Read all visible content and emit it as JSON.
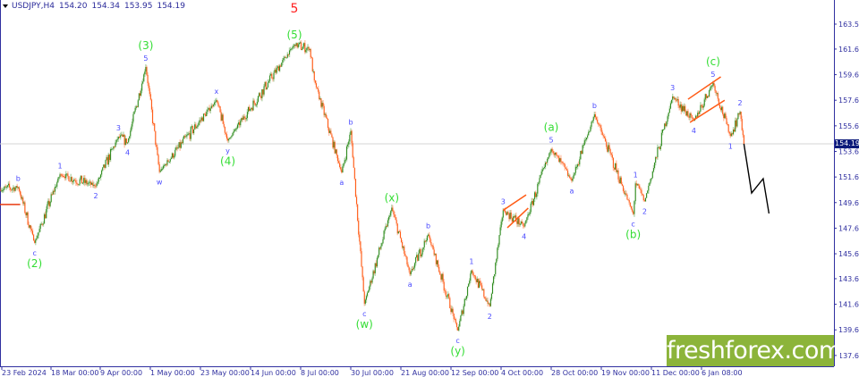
{
  "header": {
    "symbol": "USDJPY,H4",
    "open": "154.20",
    "high": "154.34",
    "low": "153.95",
    "close": "154.19"
  },
  "logo": {
    "text": "freshforex.com",
    "color": "#8cb43a"
  },
  "current_price_label": "154.19",
  "colors": {
    "up": "#2e8b1e",
    "down": "#ff5a14",
    "wave_minor": "#4a4aff",
    "wave_major": "#33dd33",
    "wave_top": "#ff2020",
    "axis": "#3030a0",
    "projection": "#000000",
    "channel": "#ff5a14"
  },
  "chart_data": {
    "type": "candlestick",
    "title": "",
    "ylim": [
      137.0,
      164.5
    ],
    "y_ticks": [
      "163.55",
      "161.60",
      "159.60",
      "157.60",
      "155.60",
      "153.60",
      "151.60",
      "149.60",
      "147.60",
      "145.60",
      "143.65",
      "141.65",
      "139.65",
      "137.65"
    ],
    "x_ticks": [
      {
        "label": "23 Feb 2024",
        "date": "2024-02-23"
      },
      {
        "label": "18 Mar 00:00",
        "date": "2024-03-18"
      },
      {
        "label": "9 Apr 00:00",
        "date": "2024-04-09"
      },
      {
        "label": "1 May 00:00",
        "date": "2024-05-01"
      },
      {
        "label": "23 May 00:00",
        "date": "2024-05-23"
      },
      {
        "label": "14 Jun 00:00",
        "date": "2024-06-14"
      },
      {
        "label": "8 Jul 00:00",
        "date": "2024-07-08"
      },
      {
        "label": "30 Jul 00:00",
        "date": "2024-07-30"
      },
      {
        "label": "21 Aug 00:00",
        "date": "2024-08-21"
      },
      {
        "label": "12 Sep 00:00",
        "date": "2024-09-12"
      },
      {
        "label": "4 Oct 00:00",
        "date": "2024-10-04"
      },
      {
        "label": "28 Oct 00:00",
        "date": "2024-10-28"
      },
      {
        "label": "19 Nov 00:00",
        "date": "2024-11-19"
      },
      {
        "label": "11 Dec 00:00",
        "date": "2024-12-11"
      },
      {
        "label": "6 Jan 08:00",
        "date": "2025-01-06"
      }
    ],
    "price_path": [
      [
        "2024-02-22",
        150.6
      ],
      [
        "2024-03-02",
        150.8
      ],
      [
        "2024-03-10",
        146.45
      ],
      [
        "2024-03-22",
        151.8
      ],
      [
        "2024-04-07",
        150.9
      ],
      [
        "2024-04-17",
        154.75
      ],
      [
        "2024-04-21",
        154.3
      ],
      [
        "2024-04-29",
        160.2
      ],
      [
        "2024-05-05",
        152.0
      ],
      [
        "2024-05-30",
        157.6
      ],
      [
        "2024-06-04",
        154.45
      ],
      [
        "2024-07-05",
        161.95
      ],
      [
        "2024-07-12",
        161.6
      ],
      [
        "2024-07-14",
        159.15
      ],
      [
        "2024-07-26",
        151.95
      ],
      [
        "2024-07-30",
        155.2
      ],
      [
        "2024-08-05",
        141.7
      ],
      [
        "2024-08-17",
        149.2
      ],
      [
        "2024-08-25",
        143.99
      ],
      [
        "2024-09-02",
        147.1
      ],
      [
        "2024-09-15",
        139.6
      ],
      [
        "2024-09-21",
        144.3
      ],
      [
        "2024-09-29",
        141.5
      ],
      [
        "2024-10-05",
        149.0
      ],
      [
        "2024-10-15",
        147.75
      ],
      [
        "2024-10-28",
        153.8
      ],
      [
        "2024-11-06",
        151.3
      ],
      [
        "2024-11-16",
        156.5
      ],
      [
        "2024-12-03",
        148.7
      ],
      [
        "2024-12-04",
        151.1
      ],
      [
        "2024-12-08",
        149.7
      ],
      [
        "2024-12-22",
        157.9
      ],
      [
        "2025-01-02",
        156.0
      ],
      [
        "2025-01-12",
        158.95
      ],
      [
        "2025-01-21",
        154.8
      ],
      [
        "2025-01-26",
        156.7
      ],
      [
        "2025-01-28",
        154.19
      ]
    ],
    "current_price": 154.19,
    "reference_line": {
      "date_from": "2024-02-22",
      "date_to": "2024-03-03",
      "price": 149.45
    },
    "projection": [
      [
        "2025-01-28",
        154.19
      ],
      [
        "2025-02-01",
        150.35
      ],
      [
        "2025-02-07",
        151.47
      ],
      [
        "2025-02-10",
        148.75
      ]
    ],
    "channels": [
      [
        [
          "2024-10-05",
          149.0
        ],
        [
          "2024-10-16",
          150.2
        ]
      ],
      [
        [
          "2024-10-07",
          147.63
        ],
        [
          "2024-10-17",
          149.17
        ]
      ],
      [
        [
          "2024-12-30",
          157.68
        ],
        [
          "2025-01-16",
          159.43
        ]
      ],
      [
        [
          "2024-12-31",
          155.87
        ],
        [
          "2025-01-18",
          157.6
        ]
      ]
    ],
    "wave_labels": [
      {
        "text": "b",
        "date": "2024-03-02",
        "price": 150.8,
        "pos": "above",
        "level": 1,
        "kind": "minor"
      },
      {
        "text": "c",
        "date": "2024-03-10",
        "price": 146.45,
        "pos": "below",
        "level": 1,
        "kind": "minor"
      },
      {
        "text": "(2)",
        "date": "2024-03-10",
        "price": 146.45,
        "pos": "below",
        "level": 2,
        "kind": "major"
      },
      {
        "text": "1",
        "date": "2024-03-22",
        "price": 151.8,
        "pos": "above",
        "level": 1,
        "kind": "minor"
      },
      {
        "text": "2",
        "date": "2024-04-07",
        "price": 150.9,
        "pos": "below",
        "level": 1,
        "kind": "minor"
      },
      {
        "text": "3",
        "date": "2024-04-17",
        "price": 154.75,
        "pos": "above",
        "level": 1,
        "kind": "minor"
      },
      {
        "text": "4",
        "date": "2024-04-21",
        "price": 154.3,
        "pos": "below",
        "level": 1,
        "kind": "minor"
      },
      {
        "text": "5",
        "date": "2024-04-29",
        "price": 160.2,
        "pos": "above",
        "level": 1,
        "kind": "minor"
      },
      {
        "text": "(3)",
        "date": "2024-04-29",
        "price": 160.2,
        "pos": "above",
        "level": 2,
        "kind": "major"
      },
      {
        "text": "w",
        "date": "2024-05-05",
        "price": 152.0,
        "pos": "below",
        "level": 1,
        "kind": "minor"
      },
      {
        "text": "x",
        "date": "2024-05-30",
        "price": 157.6,
        "pos": "above",
        "level": 1,
        "kind": "minor"
      },
      {
        "text": "y",
        "date": "2024-06-04",
        "price": 154.45,
        "pos": "below",
        "level": 1,
        "kind": "minor"
      },
      {
        "text": "(4)",
        "date": "2024-06-04",
        "price": 154.45,
        "pos": "below",
        "level": 2,
        "kind": "major"
      },
      {
        "text": "(5)",
        "date": "2024-07-05",
        "price": 161.95,
        "pos": "above",
        "level": 1,
        "kind": "major"
      },
      {
        "text": "5",
        "date": "2024-07-05",
        "price": 161.95,
        "pos": "above",
        "level": 3,
        "kind": "top"
      },
      {
        "text": "a",
        "date": "2024-07-26",
        "price": 151.95,
        "pos": "below",
        "level": 1,
        "kind": "minor"
      },
      {
        "text": "b",
        "date": "2024-07-30",
        "price": 155.2,
        "pos": "above",
        "level": 1,
        "kind": "minor"
      },
      {
        "text": "c",
        "date": "2024-08-05",
        "price": 141.7,
        "pos": "below",
        "level": 1,
        "kind": "minor"
      },
      {
        "text": "(w)",
        "date": "2024-08-05",
        "price": 141.7,
        "pos": "below",
        "level": 2,
        "kind": "major"
      },
      {
        "text": "(x)",
        "date": "2024-08-17",
        "price": 149.2,
        "pos": "above",
        "level": 1,
        "kind": "major"
      },
      {
        "text": "a",
        "date": "2024-08-25",
        "price": 143.99,
        "pos": "below",
        "level": 1,
        "kind": "minor"
      },
      {
        "text": "b",
        "date": "2024-09-02",
        "price": 147.1,
        "pos": "above",
        "level": 1,
        "kind": "minor"
      },
      {
        "text": "c",
        "date": "2024-09-15",
        "price": 139.6,
        "pos": "below",
        "level": 1,
        "kind": "minor"
      },
      {
        "text": "(y)",
        "date": "2024-09-15",
        "price": 139.6,
        "pos": "below",
        "level": 2,
        "kind": "major"
      },
      {
        "text": "1",
        "date": "2024-09-21",
        "price": 144.3,
        "pos": "above",
        "level": 1,
        "kind": "minor"
      },
      {
        "text": "2",
        "date": "2024-09-29",
        "price": 141.5,
        "pos": "below",
        "level": 1,
        "kind": "minor"
      },
      {
        "text": "3",
        "date": "2024-10-05",
        "price": 149.0,
        "pos": "above",
        "level": 1,
        "kind": "minor"
      },
      {
        "text": "4",
        "date": "2024-10-15",
        "price": 147.75,
        "pos": "below",
        "level": 1,
        "kind": "minor"
      },
      {
        "text": "5",
        "date": "2024-10-28",
        "price": 153.8,
        "pos": "above",
        "level": 1,
        "kind": "minor"
      },
      {
        "text": "(a)",
        "date": "2024-10-28",
        "price": 153.8,
        "pos": "above",
        "level": 2,
        "kind": "major"
      },
      {
        "text": "a",
        "date": "2024-11-06",
        "price": 151.3,
        "pos": "below",
        "level": 1,
        "kind": "minor"
      },
      {
        "text": "b",
        "date": "2024-11-16",
        "price": 156.5,
        "pos": "above",
        "level": 1,
        "kind": "minor"
      },
      {
        "text": "c",
        "date": "2024-12-03",
        "price": 148.7,
        "pos": "below",
        "level": 1,
        "kind": "minor"
      },
      {
        "text": "(b)",
        "date": "2024-12-03",
        "price": 148.7,
        "pos": "below",
        "level": 2,
        "kind": "major"
      },
      {
        "text": "1",
        "date": "2024-12-04",
        "price": 151.1,
        "pos": "above",
        "level": 1,
        "kind": "minor"
      },
      {
        "text": "2",
        "date": "2024-12-08",
        "price": 149.7,
        "pos": "below",
        "level": 1,
        "kind": "minor"
      },
      {
        "text": "3",
        "date": "2024-12-22",
        "price": 157.9,
        "pos": "above",
        "level": 1,
        "kind": "minor"
      },
      {
        "text": "4",
        "date": "2025-01-02",
        "price": 156.0,
        "pos": "below",
        "level": 1,
        "kind": "minor"
      },
      {
        "text": "5",
        "date": "2025-01-12",
        "price": 158.95,
        "pos": "above",
        "level": 1,
        "kind": "minor"
      },
      {
        "text": "(c)",
        "date": "2025-01-12",
        "price": 158.95,
        "pos": "above",
        "level": 2,
        "kind": "major"
      },
      {
        "text": "1",
        "date": "2025-01-21",
        "price": 154.8,
        "pos": "below",
        "level": 1,
        "kind": "minor"
      },
      {
        "text": "2",
        "date": "2025-01-26",
        "price": 156.7,
        "pos": "above",
        "level": 1,
        "kind": "minor"
      }
    ]
  }
}
